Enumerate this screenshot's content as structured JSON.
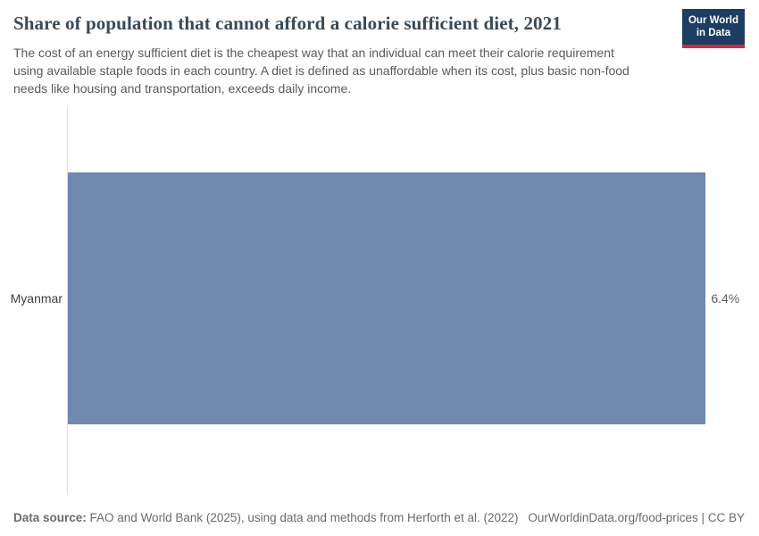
{
  "header": {
    "title": "Share of population that cannot afford a calorie sufficient diet, 2021",
    "subtitle": "The cost of an energy sufficient diet is the cheapest way that an individual can meet their calorie requirement using available staple foods in each country. A diet is defined as unaffordable when its cost, plus basic non-food needs like housing and transportation, exceeds daily income.",
    "logo": {
      "line1": "Our World",
      "line2": "in Data"
    }
  },
  "chart_data": {
    "type": "bar",
    "orientation": "horizontal",
    "title": "Share of population that cannot afford a calorie sufficient diet, 2021",
    "categories": [
      "Myanmar"
    ],
    "values": [
      6.4
    ],
    "value_labels": [
      "6.4%"
    ],
    "unit": "%",
    "year": "2021",
    "xlabel": "",
    "ylabel": "",
    "xlim": [
      0,
      6.8
    ],
    "grid": false,
    "legend": false,
    "bar_color": "#7189ae"
  },
  "footer": {
    "source_label": "Data source:",
    "source_text": " FAO and World Bank (2025), using data and methods from Herforth et al. (2022)",
    "link_text": "OurWorldinData.org/food-prices | CC BY"
  },
  "colors": {
    "bar": "#7189ae",
    "logo_bg": "#1d3d63",
    "logo_stripe": "#cf2b3e",
    "axis_line": "#dedede"
  }
}
